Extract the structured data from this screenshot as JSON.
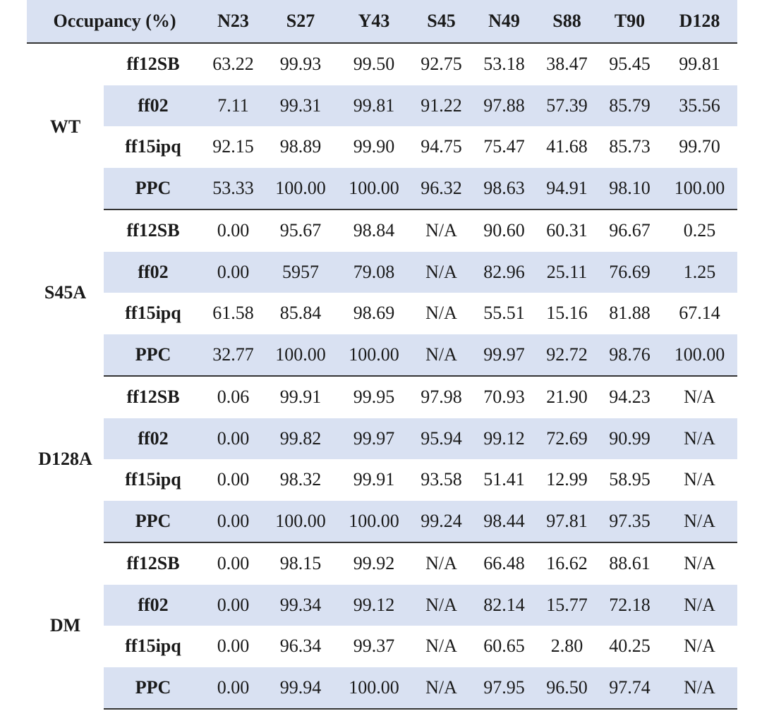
{
  "table": {
    "header_label": "Occupancy (%)",
    "columns": [
      "N23",
      "S27",
      "Y43",
      "S45",
      "N49",
      "S88",
      "T90",
      "D128"
    ],
    "groups": [
      {
        "name": "WT",
        "rows": [
          {
            "ff": "ff12SB",
            "values": [
              "63.22",
              "99.93",
              "99.50",
              "92.75",
              "53.18",
              "38.47",
              "95.45",
              "99.81"
            ]
          },
          {
            "ff": "ff02",
            "values": [
              "7.11",
              "99.31",
              "99.81",
              "91.22",
              "97.88",
              "57.39",
              "85.79",
              "35.56"
            ]
          },
          {
            "ff": "ff15ipq",
            "values": [
              "92.15",
              "98.89",
              "99.90",
              "94.75",
              "75.47",
              "41.68",
              "85.73",
              "99.70"
            ]
          },
          {
            "ff": "PPC",
            "values": [
              "53.33",
              "100.00",
              "100.00",
              "96.32",
              "98.63",
              "94.91",
              "98.10",
              "100.00"
            ]
          }
        ]
      },
      {
        "name": "S45A",
        "rows": [
          {
            "ff": "ff12SB",
            "values": [
              "0.00",
              "95.67",
              "98.84",
              "N/A",
              "90.60",
              "60.31",
              "96.67",
              "0.25"
            ]
          },
          {
            "ff": "ff02",
            "values": [
              "0.00",
              "5957",
              "79.08",
              "N/A",
              "82.96",
              "25.11",
              "76.69",
              "1.25"
            ]
          },
          {
            "ff": "ff15ipq",
            "values": [
              "61.58",
              "85.84",
              "98.69",
              "N/A",
              "55.51",
              "15.16",
              "81.88",
              "67.14"
            ]
          },
          {
            "ff": "PPC",
            "values": [
              "32.77",
              "100.00",
              "100.00",
              "N/A",
              "99.97",
              "92.72",
              "98.76",
              "100.00"
            ]
          }
        ]
      },
      {
        "name": "D128A",
        "rows": [
          {
            "ff": "ff12SB",
            "values": [
              "0.06",
              "99.91",
              "99.95",
              "97.98",
              "70.93",
              "21.90",
              "94.23",
              "N/A"
            ]
          },
          {
            "ff": "ff02",
            "values": [
              "0.00",
              "99.82",
              "99.97",
              "95.94",
              "99.12",
              "72.69",
              "90.99",
              "N/A"
            ]
          },
          {
            "ff": "ff15ipq",
            "values": [
              "0.00",
              "98.32",
              "99.91",
              "93.58",
              "51.41",
              "12.99",
              "58.95",
              "N/A"
            ]
          },
          {
            "ff": "PPC",
            "values": [
              "0.00",
              "100.00",
              "100.00",
              "99.24",
              "98.44",
              "97.81",
              "97.35",
              "N/A"
            ]
          }
        ]
      },
      {
        "name": "DM",
        "rows": [
          {
            "ff": "ff12SB",
            "values": [
              "0.00",
              "98.15",
              "99.92",
              "N/A",
              "66.48",
              "16.62",
              "88.61",
              "N/A"
            ]
          },
          {
            "ff": "ff02",
            "values": [
              "0.00",
              "99.34",
              "99.12",
              "N/A",
              "82.14",
              "15.77",
              "72.18",
              "N/A"
            ]
          },
          {
            "ff": "ff15ipq",
            "values": [
              "0.00",
              "96.34",
              "99.37",
              "N/A",
              "60.65",
              "2.80",
              "40.25",
              "N/A"
            ]
          },
          {
            "ff": "PPC",
            "values": [
              "0.00",
              "99.94",
              "100.00",
              "N/A",
              "97.95",
              "96.50",
              "97.74",
              "N/A"
            ]
          }
        ]
      }
    ]
  }
}
